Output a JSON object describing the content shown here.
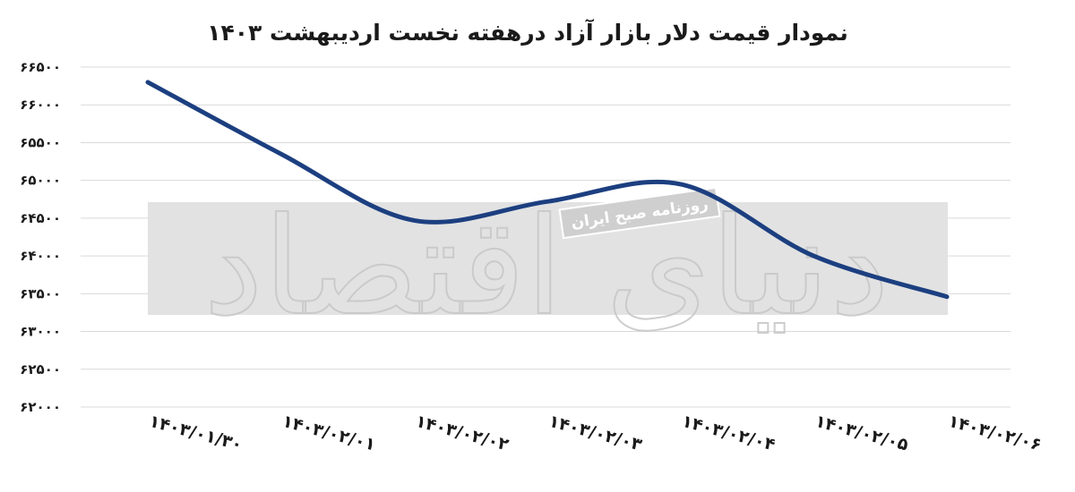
{
  "chart_data": {
    "type": "line",
    "title": "نمودار قیمت دلار بازار آزاد درهفته نخست اردیبهشت ۱۴۰۳",
    "xlabel": "",
    "ylabel": "",
    "categories": [
      "۱۴۰۳/۰۱/۳۰",
      "۱۴۰۳/۰۲/۰۱",
      "۱۴۰۳/۰۲/۰۲",
      "۱۴۰۳/۰۲/۰۳",
      "۱۴۰۳/۰۲/۰۴",
      "۱۴۰۳/۰۲/۰۵",
      "۱۴۰۳/۰۲/۰۶"
    ],
    "ylim": [
      62000,
      66500
    ],
    "y_ticks": [
      {
        "value": 66500,
        "label": "۶۶۵۰۰"
      },
      {
        "value": 66000,
        "label": "۶۶۰۰۰"
      },
      {
        "value": 65500,
        "label": "۶۵۵۰۰"
      },
      {
        "value": 65000,
        "label": "۶۵۰۰۰"
      },
      {
        "value": 64500,
        "label": "۶۴۵۰۰"
      },
      {
        "value": 64000,
        "label": "۶۴۰۰۰"
      },
      {
        "value": 63500,
        "label": "۶۳۵۰۰"
      },
      {
        "value": 63000,
        "label": "۶۳۰۰۰"
      },
      {
        "value": 62500,
        "label": "۶۲۵۰۰"
      },
      {
        "value": 62000,
        "label": "۶۲۰۰۰"
      }
    ],
    "series": [
      {
        "values": [
          66300,
          65350,
          64470,
          64720,
          64950,
          64000,
          63460
        ],
        "color": "#1c3f80"
      }
    ],
    "grid": true,
    "smooth": true,
    "watermark": {
      "label": "روزنامه صبح ایران",
      "logo": "دنیای اقتصاد"
    }
  }
}
